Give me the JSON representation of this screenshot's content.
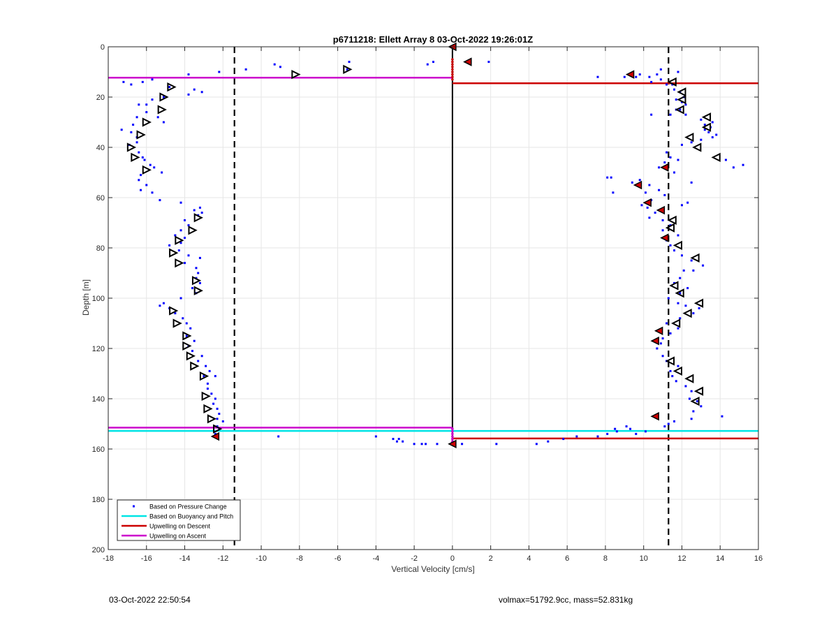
{
  "chart_data": {
    "type": "scatter",
    "title": "p6711218: Ellett Array 8 03-Oct-2022 19:26:01Z",
    "xlabel": "Vertical Velocity [cm/s]",
    "ylabel": "Depth [m]",
    "xlim": [
      -18,
      16
    ],
    "ylim": [
      0,
      200
    ],
    "y_reversed": true,
    "grid": true,
    "xticks": [
      "-18",
      "-16",
      "-14",
      "-12",
      "-10",
      "-8",
      "-6",
      "-4",
      "-2",
      "0",
      "2",
      "4",
      "6",
      "8",
      "10",
      "12",
      "14",
      "16"
    ],
    "yticks": [
      "0",
      "20",
      "40",
      "60",
      "80",
      "100",
      "120",
      "140",
      "160",
      "180",
      "200"
    ],
    "legend_position": "bottom-left",
    "legend": [
      {
        "label": "Based on Pressure Change",
        "color": "#0000ff",
        "kind": "dot"
      },
      {
        "label": "Based on Buoyancy and Pitch",
        "color": "#00e5e5",
        "kind": "line"
      },
      {
        "label": "Upwelling on Descent",
        "color": "#cc0000",
        "kind": "line"
      },
      {
        "label": "Upwelling on Ascent",
        "color": "#cc00cc",
        "kind": "line"
      }
    ],
    "dashed_vertical_lines_x": [
      -11.4,
      11.3
    ],
    "zero_line_x": 0,
    "pressure_change_points": [
      [
        -1.0,
        6
      ],
      [
        -1.3,
        7
      ],
      [
        -9.3,
        7
      ],
      [
        -9.0,
        8
      ],
      [
        -5.4,
        6
      ],
      [
        -5.5,
        9
      ],
      [
        -10.8,
        9
      ],
      [
        -12.2,
        10
      ],
      [
        -13.8,
        11
      ],
      [
        -15.7,
        13
      ],
      [
        -16.2,
        14
      ],
      [
        -16.8,
        15
      ],
      [
        -17.2,
        14
      ],
      [
        -14.8,
        16
      ],
      [
        -13.5,
        17
      ],
      [
        -13.1,
        18
      ],
      [
        -13.8,
        19
      ],
      [
        -15.1,
        20
      ],
      [
        -15.7,
        21
      ],
      [
        -16.0,
        23
      ],
      [
        -16.4,
        23
      ],
      [
        -16.0,
        26
      ],
      [
        -16.5,
        28
      ],
      [
        -15.4,
        28
      ],
      [
        -15.1,
        30
      ],
      [
        -16.7,
        31
      ],
      [
        -17.3,
        33
      ],
      [
        -16.8,
        34
      ],
      [
        -16.5,
        36
      ],
      [
        -16.5,
        38
      ],
      [
        -16.9,
        39
      ],
      [
        -16.4,
        42
      ],
      [
        -16.2,
        44
      ],
      [
        -16.1,
        45
      ],
      [
        -15.8,
        47
      ],
      [
        -15.6,
        48
      ],
      [
        -15.2,
        50
      ],
      [
        -16.3,
        51
      ],
      [
        -16.4,
        53
      ],
      [
        -16.0,
        55
      ],
      [
        -16.3,
        57
      ],
      [
        -15.7,
        58
      ],
      [
        -15.3,
        61
      ],
      [
        -14.2,
        62
      ],
      [
        -13.2,
        64
      ],
      [
        -13.5,
        65
      ],
      [
        -13.1,
        66
      ],
      [
        -13.3,
        67
      ],
      [
        -14.0,
        69
      ],
      [
        -13.8,
        71
      ],
      [
        -14.2,
        73
      ],
      [
        -14.5,
        75
      ],
      [
        -14.0,
        76
      ],
      [
        -14.2,
        78
      ],
      [
        -14.8,
        79
      ],
      [
        -14.3,
        81
      ],
      [
        -13.8,
        83
      ],
      [
        -13.2,
        84
      ],
      [
        -14.0,
        86
      ],
      [
        -13.4,
        88
      ],
      [
        -13.3,
        90
      ],
      [
        -13.4,
        92
      ],
      [
        -13.2,
        94
      ],
      [
        -13.6,
        96
      ],
      [
        -13.4,
        98
      ],
      [
        -14.2,
        100
      ],
      [
        -15.1,
        102
      ],
      [
        -15.3,
        103
      ],
      [
        -14.8,
        104
      ],
      [
        -14.5,
        106
      ],
      [
        -14.1,
        108
      ],
      [
        -13.9,
        110
      ],
      [
        -13.7,
        112
      ],
      [
        -13.9,
        115
      ],
      [
        -13.5,
        117
      ],
      [
        -13.8,
        119
      ],
      [
        -13.6,
        121
      ],
      [
        -13.1,
        123
      ],
      [
        -13.3,
        125
      ],
      [
        -12.9,
        127
      ],
      [
        -12.7,
        129
      ],
      [
        -13.0,
        131
      ],
      [
        -12.4,
        131
      ],
      [
        -12.8,
        134
      ],
      [
        -12.8,
        136
      ],
      [
        -12.6,
        138
      ],
      [
        -12.4,
        140
      ],
      [
        -12.5,
        142
      ],
      [
        -12.3,
        144
      ],
      [
        -12.2,
        146
      ],
      [
        -12.3,
        148
      ],
      [
        -12.0,
        149
      ],
      [
        -12.3,
        151
      ],
      [
        -12.2,
        152
      ],
      [
        -12.4,
        154
      ],
      [
        -12.5,
        155
      ],
      [
        -9.1,
        155
      ],
      [
        -4.0,
        155
      ],
      [
        -3.1,
        156
      ],
      [
        -2.8,
        156
      ],
      [
        -2.6,
        157
      ],
      [
        -2.9,
        157
      ],
      [
        -2.0,
        158
      ],
      [
        -1.6,
        158
      ],
      [
        -1.4,
        158
      ],
      [
        -0.8,
        158
      ],
      [
        0.0,
        158
      ],
      [
        0.5,
        158
      ],
      [
        2.3,
        158
      ],
      [
        4.4,
        158
      ],
      [
        5.0,
        157
      ],
      [
        5.8,
        156
      ],
      [
        6.5,
        155
      ],
      [
        7.6,
        155
      ],
      [
        8.1,
        154
      ],
      [
        8.5,
        152
      ],
      [
        8.6,
        153
      ],
      [
        9.1,
        151
      ],
      [
        9.3,
        152
      ],
      [
        9.6,
        154
      ],
      [
        10.1,
        153
      ],
      [
        11.1,
        151
      ],
      [
        11.3,
        150
      ],
      [
        11.6,
        149
      ],
      [
        12.5,
        148
      ],
      [
        14.1,
        147
      ],
      [
        12.6,
        145
      ],
      [
        13.0,
        143
      ],
      [
        12.8,
        141
      ],
      [
        12.4,
        140
      ],
      [
        12.5,
        137
      ],
      [
        12.2,
        135
      ],
      [
        11.7,
        133
      ],
      [
        11.5,
        131
      ],
      [
        11.4,
        129
      ],
      [
        11.8,
        127
      ],
      [
        11.2,
        125
      ],
      [
        11.0,
        123
      ],
      [
        10.7,
        120
      ],
      [
        10.9,
        118
      ],
      [
        11.0,
        116
      ],
      [
        11.4,
        114
      ],
      [
        11.8,
        112
      ],
      [
        11.2,
        110
      ],
      [
        11.9,
        108
      ],
      [
        12.6,
        106
      ],
      [
        12.9,
        104
      ],
      [
        12.2,
        103
      ],
      [
        11.8,
        102
      ],
      [
        11.3,
        100
      ],
      [
        11.9,
        98
      ],
      [
        12.3,
        96
      ],
      [
        11.6,
        94
      ],
      [
        11.9,
        92
      ],
      [
        12.1,
        89
      ],
      [
        12.6,
        89
      ],
      [
        13.1,
        87
      ],
      [
        12.5,
        85
      ],
      [
        12.0,
        83
      ],
      [
        11.6,
        81
      ],
      [
        11.4,
        79
      ],
      [
        11.2,
        77
      ],
      [
        11.8,
        75
      ],
      [
        11.0,
        73
      ],
      [
        11.4,
        71
      ],
      [
        11.0,
        69
      ],
      [
        10.3,
        68
      ],
      [
        10.6,
        66
      ],
      [
        10.2,
        64
      ],
      [
        9.9,
        63
      ],
      [
        10.4,
        61
      ],
      [
        11.1,
        59
      ],
      [
        10.1,
        58
      ],
      [
        10.8,
        57
      ],
      [
        10.3,
        55
      ],
      [
        9.4,
        54
      ],
      [
        9.8,
        53
      ],
      [
        8.3,
        52
      ],
      [
        8.1,
        52
      ],
      [
        8.4,
        58
      ],
      [
        11.6,
        50
      ],
      [
        10.8,
        48
      ],
      [
        11.1,
        46
      ],
      [
        11.8,
        45
      ],
      [
        11.4,
        44
      ],
      [
        11.2,
        42
      ],
      [
        12.0,
        39
      ],
      [
        12.5,
        38
      ],
      [
        13.0,
        37
      ],
      [
        13.6,
        36
      ],
      [
        13.8,
        35
      ],
      [
        13.4,
        34
      ],
      [
        13.2,
        33
      ],
      [
        13.6,
        30
      ],
      [
        13.0,
        29
      ],
      [
        12.2,
        27
      ],
      [
        11.9,
        25
      ],
      [
        12.2,
        23
      ],
      [
        12.0,
        22
      ],
      [
        11.7,
        21
      ],
      [
        12.1,
        20
      ],
      [
        11.9,
        18
      ],
      [
        11.6,
        17
      ],
      [
        11.5,
        15
      ],
      [
        11.2,
        15
      ],
      [
        10.9,
        13
      ],
      [
        10.4,
        14
      ],
      [
        10.3,
        12
      ],
      [
        9.8,
        11
      ],
      [
        9.6,
        12
      ],
      [
        9.0,
        12
      ],
      [
        7.6,
        12
      ],
      [
        10.7,
        11
      ],
      [
        11.8,
        10
      ],
      [
        10.9,
        9
      ],
      [
        1.9,
        6
      ],
      [
        0.8,
        6
      ],
      [
        14.3,
        45
      ],
      [
        15.2,
        47
      ],
      [
        14.7,
        48
      ],
      [
        12.5,
        54
      ],
      [
        12.0,
        63
      ],
      [
        12.3,
        62
      ],
      [
        11.4,
        27
      ],
      [
        10.4,
        27
      ],
      [
        11.7,
        25
      ],
      [
        13.2,
        31
      ],
      [
        13.5,
        32
      ]
    ],
    "ascent_markers": [
      [
        -8.2,
        11
      ],
      [
        -5.5,
        9
      ],
      [
        -14.7,
        16
      ],
      [
        -15.1,
        20
      ],
      [
        -15.2,
        25
      ],
      [
        -16.0,
        30
      ],
      [
        -16.3,
        35
      ],
      [
        -16.8,
        40
      ],
      [
        -16.6,
        44
      ],
      [
        -16.0,
        49
      ],
      [
        -13.3,
        68
      ],
      [
        -13.6,
        73
      ],
      [
        -14.3,
        77
      ],
      [
        -14.6,
        82
      ],
      [
        -14.3,
        86
      ],
      [
        -13.4,
        93
      ],
      [
        -13.3,
        97
      ],
      [
        -14.6,
        105
      ],
      [
        -14.4,
        110
      ],
      [
        -13.9,
        115
      ],
      [
        -13.9,
        119
      ],
      [
        -13.7,
        123
      ],
      [
        -13.5,
        127
      ],
      [
        -13.0,
        131
      ],
      [
        -12.9,
        139
      ],
      [
        -12.8,
        144
      ],
      [
        -12.6,
        148
      ],
      [
        -12.3,
        152
      ]
    ],
    "descent_markers": [
      [
        11.5,
        14
      ],
      [
        12.0,
        18
      ],
      [
        12.0,
        21
      ],
      [
        11.9,
        25
      ],
      [
        13.3,
        28
      ],
      [
        13.3,
        32
      ],
      [
        12.4,
        36
      ],
      [
        12.8,
        40
      ],
      [
        13.8,
        44
      ],
      [
        11.5,
        69
      ],
      [
        11.4,
        72
      ],
      [
        11.8,
        79
      ],
      [
        12.7,
        84
      ],
      [
        11.6,
        95
      ],
      [
        11.9,
        98
      ],
      [
        12.9,
        102
      ],
      [
        12.3,
        106
      ],
      [
        11.7,
        110
      ],
      [
        11.4,
        125
      ],
      [
        11.8,
        129
      ],
      [
        12.4,
        132
      ],
      [
        12.9,
        137
      ],
      [
        12.7,
        141
      ]
    ],
    "red_points": [
      [
        0.0,
        0
      ],
      [
        0.8,
        6
      ],
      [
        9.3,
        11
      ],
      [
        11.1,
        48
      ],
      [
        9.7,
        55
      ],
      [
        10.2,
        62
      ],
      [
        10.9,
        65
      ],
      [
        11.1,
        76
      ],
      [
        10.8,
        113
      ],
      [
        10.6,
        117
      ],
      [
        10.6,
        147
      ],
      [
        -12.4,
        155
      ],
      [
        0.0,
        158
      ]
    ],
    "red_column_depths": [
      5,
      6,
      7,
      8,
      9,
      10,
      11,
      12,
      13
    ],
    "magenta_column_depths": [
      152,
      153,
      154,
      155,
      156,
      157
    ],
    "horizontal_lines": [
      {
        "series": "ascent",
        "y": 12.3,
        "x_from": -18,
        "x_to": 0,
        "color": "#cc00cc"
      },
      {
        "series": "descent",
        "y": 14.5,
        "x_from": 0,
        "x_to": 16,
        "color": "#cc0000"
      },
      {
        "series": "ascent",
        "y": 151.5,
        "x_from": -18,
        "x_to": 0,
        "color": "#cc00cc"
      },
      {
        "series": "buoyancy",
        "y": 152.8,
        "x_from": -18,
        "x_to": 16,
        "color": "#00e5e5"
      },
      {
        "series": "descent",
        "y": 155.8,
        "x_from": 0,
        "x_to": 16,
        "color": "#cc0000"
      }
    ]
  },
  "footer": {
    "left": "03-Oct-2022 22:50:54",
    "right": "volmax=51792.9cc, mass=52.831kg"
  }
}
